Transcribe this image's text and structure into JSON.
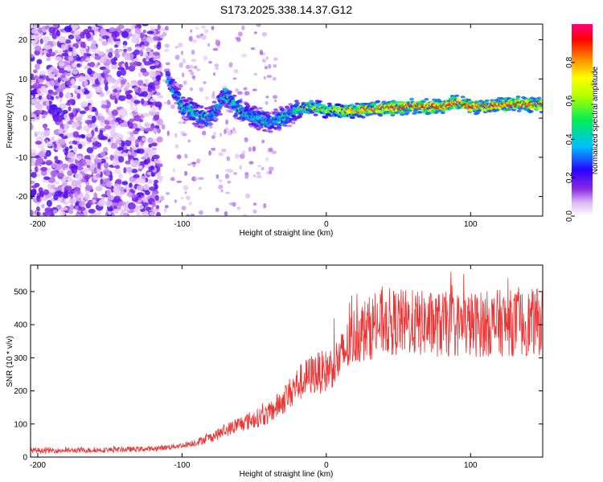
{
  "chart_data": [
    {
      "type": "heatmap",
      "title": "S173.2025.338.14.37.G12",
      "xlabel": "Height of straight line (km)",
      "ylabel": "Frequency (Hz)",
      "xlim": [
        -205,
        150
      ],
      "ylim": [
        -25,
        24
      ],
      "xticks": [
        -200,
        -100,
        0,
        100
      ],
      "yticks": [
        -20,
        -10,
        0,
        10,
        20
      ],
      "colorbar": {
        "label": "Normalized spectral amplitude",
        "range": [
          0,
          1
        ],
        "ticks": [
          "0.0",
          "0.2",
          "0.4",
          "0.6",
          "0.8"
        ],
        "tick_values": [
          0.0,
          0.2,
          0.4,
          0.6,
          0.8
        ]
      },
      "ridge": {
        "description": "frequency of peak spectral amplitude vs height",
        "x": [
          -110,
          -100,
          -90,
          -80,
          -70,
          -60,
          -50,
          -40,
          -30,
          -20,
          -10,
          0,
          10,
          20,
          40,
          60,
          80,
          90,
          100,
          110,
          120,
          140,
          150
        ],
        "frequency": [
          10,
          3,
          1,
          0,
          6,
          2,
          0,
          -1,
          0,
          2,
          3,
          2,
          2,
          2,
          2.5,
          3,
          3,
          4,
          3,
          3,
          3.5,
          3.5,
          3.5
        ]
      },
      "noise_region_x": [
        -205,
        -115
      ]
    },
    {
      "type": "line",
      "xlabel": "Height of straight line (km)",
      "ylabel": "SNR (10 * v/v)",
      "xlim": [
        -205,
        150
      ],
      "ylim": [
        0,
        580
      ],
      "xticks": [
        -200,
        -100,
        0,
        100
      ],
      "yticks": [
        0,
        100,
        200,
        300,
        400,
        500
      ],
      "series": [
        {
          "name": "SNR",
          "color": "#ee3333",
          "x": [
            -205,
            -180,
            -150,
            -120,
            -100,
            -90,
            -80,
            -70,
            -60,
            -50,
            -40,
            -30,
            -20,
            -10,
            0,
            10,
            20,
            30,
            40,
            60,
            80,
            100,
            120,
            140,
            150
          ],
          "values": [
            20,
            20,
            22,
            25,
            35,
            45,
            60,
            80,
            100,
            115,
            130,
            170,
            220,
            250,
            260,
            300,
            370,
            390,
            410,
            405,
            400,
            400,
            405,
            405,
            410
          ]
        }
      ]
    }
  ]
}
